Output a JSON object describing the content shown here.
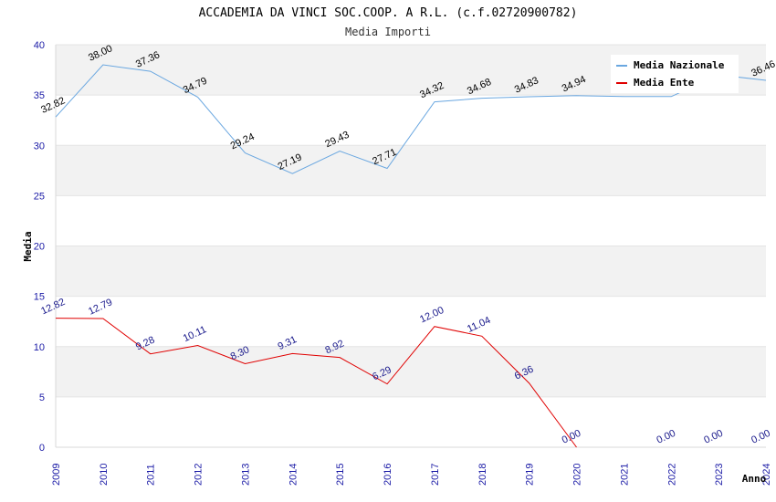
{
  "chart_data": {
    "type": "line",
    "title": "ACCADEMIA DA VINCI SOC.COOP. A R.L. (c.f.02720900782)",
    "subtitle": "Media Importi",
    "xlabel": "Anno",
    "ylabel": "Media",
    "ylim": [
      0,
      40
    ],
    "yticks": [
      "0",
      "5",
      "10",
      "15",
      "20",
      "25",
      "30",
      "35",
      "40"
    ],
    "grid": true,
    "legend_position": "top-right",
    "x": [
      "2009",
      "2010",
      "2011",
      "2012",
      "2013",
      "2014",
      "2015",
      "2016",
      "2017",
      "2018",
      "2019",
      "2020",
      "2021",
      "2022",
      "2023",
      "2024"
    ],
    "series": [
      {
        "name": "Media Nazionale",
        "color": "#6aa7e0",
        "values": [
          32.82,
          38.0,
          37.36,
          34.79,
          29.24,
          27.19,
          29.43,
          27.71,
          34.32,
          34.68,
          34.83,
          34.94,
          34.85,
          34.85,
          37.0,
          36.46
        ],
        "labels": [
          "32.82",
          "38.00",
          "37.36",
          "34.79",
          "29.24",
          "27.19",
          "29.43",
          "27.71",
          "34.32",
          "34.68",
          "34.83",
          "34.94",
          "",
          "",
          "",
          "36.46"
        ]
      },
      {
        "name": "Media Ente",
        "color": "#e00000",
        "values": [
          12.82,
          12.79,
          9.28,
          10.11,
          8.3,
          9.31,
          8.92,
          6.29,
          12.0,
          11.04,
          6.36,
          0.0,
          null,
          0.0,
          0.0,
          0.0
        ],
        "labels": [
          "12.82",
          "12.79",
          "9.28",
          "10.11",
          "8.30",
          "9.31",
          "8.92",
          "6.29",
          "12.00",
          "11.04",
          "6.36",
          "0.00",
          "",
          "0.00",
          "0.00",
          "0.00"
        ]
      }
    ]
  }
}
